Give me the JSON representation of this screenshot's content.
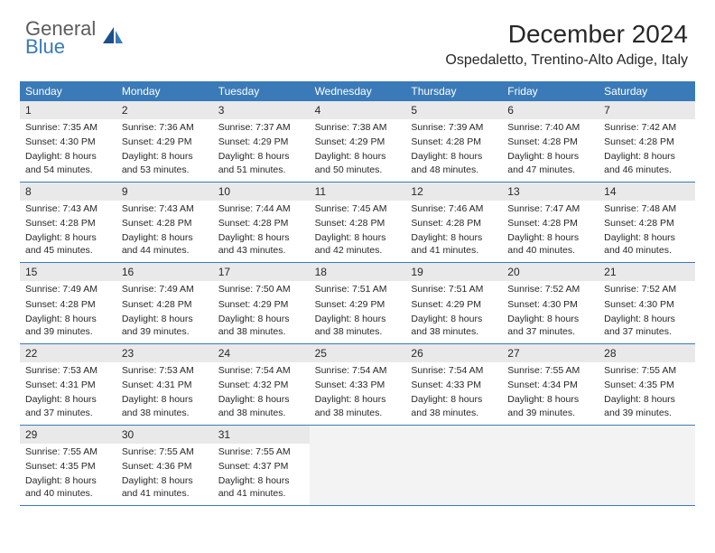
{
  "logo": {
    "word1": "General",
    "word2": "Blue"
  },
  "title": "December 2024",
  "location": "Ospedaletto, Trentino-Alto Adige, Italy",
  "colors": {
    "header_bg": "#3a7ab8",
    "header_text": "#ffffff",
    "daynum_bg": "#e9e9e9",
    "empty_bg": "#f3f3f3",
    "text": "#272727",
    "logo_gray": "#5c5c5c",
    "logo_blue": "#3a7ab8",
    "border": "#3a7ab8"
  },
  "day_headers": [
    "Sunday",
    "Monday",
    "Tuesday",
    "Wednesday",
    "Thursday",
    "Friday",
    "Saturday"
  ],
  "weeks": [
    [
      {
        "n": "1",
        "sunrise": "7:35 AM",
        "sunset": "4:30 PM",
        "daylight": "8 hours and 54 minutes."
      },
      {
        "n": "2",
        "sunrise": "7:36 AM",
        "sunset": "4:29 PM",
        "daylight": "8 hours and 53 minutes."
      },
      {
        "n": "3",
        "sunrise": "7:37 AM",
        "sunset": "4:29 PM",
        "daylight": "8 hours and 51 minutes."
      },
      {
        "n": "4",
        "sunrise": "7:38 AM",
        "sunset": "4:29 PM",
        "daylight": "8 hours and 50 minutes."
      },
      {
        "n": "5",
        "sunrise": "7:39 AM",
        "sunset": "4:28 PM",
        "daylight": "8 hours and 48 minutes."
      },
      {
        "n": "6",
        "sunrise": "7:40 AM",
        "sunset": "4:28 PM",
        "daylight": "8 hours and 47 minutes."
      },
      {
        "n": "7",
        "sunrise": "7:42 AM",
        "sunset": "4:28 PM",
        "daylight": "8 hours and 46 minutes."
      }
    ],
    [
      {
        "n": "8",
        "sunrise": "7:43 AM",
        "sunset": "4:28 PM",
        "daylight": "8 hours and 45 minutes."
      },
      {
        "n": "9",
        "sunrise": "7:43 AM",
        "sunset": "4:28 PM",
        "daylight": "8 hours and 44 minutes."
      },
      {
        "n": "10",
        "sunrise": "7:44 AM",
        "sunset": "4:28 PM",
        "daylight": "8 hours and 43 minutes."
      },
      {
        "n": "11",
        "sunrise": "7:45 AM",
        "sunset": "4:28 PM",
        "daylight": "8 hours and 42 minutes."
      },
      {
        "n": "12",
        "sunrise": "7:46 AM",
        "sunset": "4:28 PM",
        "daylight": "8 hours and 41 minutes."
      },
      {
        "n": "13",
        "sunrise": "7:47 AM",
        "sunset": "4:28 PM",
        "daylight": "8 hours and 40 minutes."
      },
      {
        "n": "14",
        "sunrise": "7:48 AM",
        "sunset": "4:28 PM",
        "daylight": "8 hours and 40 minutes."
      }
    ],
    [
      {
        "n": "15",
        "sunrise": "7:49 AM",
        "sunset": "4:28 PM",
        "daylight": "8 hours and 39 minutes."
      },
      {
        "n": "16",
        "sunrise": "7:49 AM",
        "sunset": "4:28 PM",
        "daylight": "8 hours and 39 minutes."
      },
      {
        "n": "17",
        "sunrise": "7:50 AM",
        "sunset": "4:29 PM",
        "daylight": "8 hours and 38 minutes."
      },
      {
        "n": "18",
        "sunrise": "7:51 AM",
        "sunset": "4:29 PM",
        "daylight": "8 hours and 38 minutes."
      },
      {
        "n": "19",
        "sunrise": "7:51 AM",
        "sunset": "4:29 PM",
        "daylight": "8 hours and 38 minutes."
      },
      {
        "n": "20",
        "sunrise": "7:52 AM",
        "sunset": "4:30 PM",
        "daylight": "8 hours and 37 minutes."
      },
      {
        "n": "21",
        "sunrise": "7:52 AM",
        "sunset": "4:30 PM",
        "daylight": "8 hours and 37 minutes."
      }
    ],
    [
      {
        "n": "22",
        "sunrise": "7:53 AM",
        "sunset": "4:31 PM",
        "daylight": "8 hours and 37 minutes."
      },
      {
        "n": "23",
        "sunrise": "7:53 AM",
        "sunset": "4:31 PM",
        "daylight": "8 hours and 38 minutes."
      },
      {
        "n": "24",
        "sunrise": "7:54 AM",
        "sunset": "4:32 PM",
        "daylight": "8 hours and 38 minutes."
      },
      {
        "n": "25",
        "sunrise": "7:54 AM",
        "sunset": "4:33 PM",
        "daylight": "8 hours and 38 minutes."
      },
      {
        "n": "26",
        "sunrise": "7:54 AM",
        "sunset": "4:33 PM",
        "daylight": "8 hours and 38 minutes."
      },
      {
        "n": "27",
        "sunrise": "7:55 AM",
        "sunset": "4:34 PM",
        "daylight": "8 hours and 39 minutes."
      },
      {
        "n": "28",
        "sunrise": "7:55 AM",
        "sunset": "4:35 PM",
        "daylight": "8 hours and 39 minutes."
      }
    ],
    [
      {
        "n": "29",
        "sunrise": "7:55 AM",
        "sunset": "4:35 PM",
        "daylight": "8 hours and 40 minutes."
      },
      {
        "n": "30",
        "sunrise": "7:55 AM",
        "sunset": "4:36 PM",
        "daylight": "8 hours and 41 minutes."
      },
      {
        "n": "31",
        "sunrise": "7:55 AM",
        "sunset": "4:37 PM",
        "daylight": "8 hours and 41 minutes."
      },
      {
        "empty": true
      },
      {
        "empty": true
      },
      {
        "empty": true
      },
      {
        "empty": true
      }
    ]
  ],
  "labels": {
    "sunrise": "Sunrise:",
    "sunset": "Sunset:",
    "daylight": "Daylight:"
  }
}
